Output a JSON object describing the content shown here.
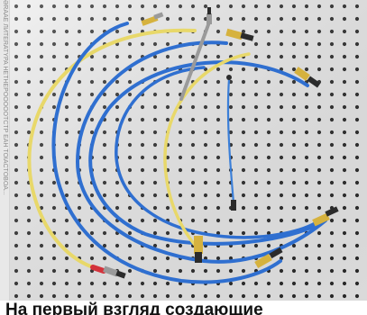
{
  "side_strip": {
    "text": "ƏRAAЕ ЛИTERATYPA HETHEPOOOOOTCTP EAH TOIACTOBOA..."
  },
  "photo": {
    "subject": "coaxial-cable-assemblies-on-pegboard",
    "colors": {
      "board": "#ededed",
      "hole": "#2b2b2b",
      "blue_cable": "#2f6fd0",
      "yellow_cable": "#e8d86a",
      "connector_gold": "#d6b23e",
      "connector_steel": "#9a9a9a",
      "red_band": "#d3323b"
    }
  },
  "caption": {
    "text": "На первый взгляд создающие"
  }
}
